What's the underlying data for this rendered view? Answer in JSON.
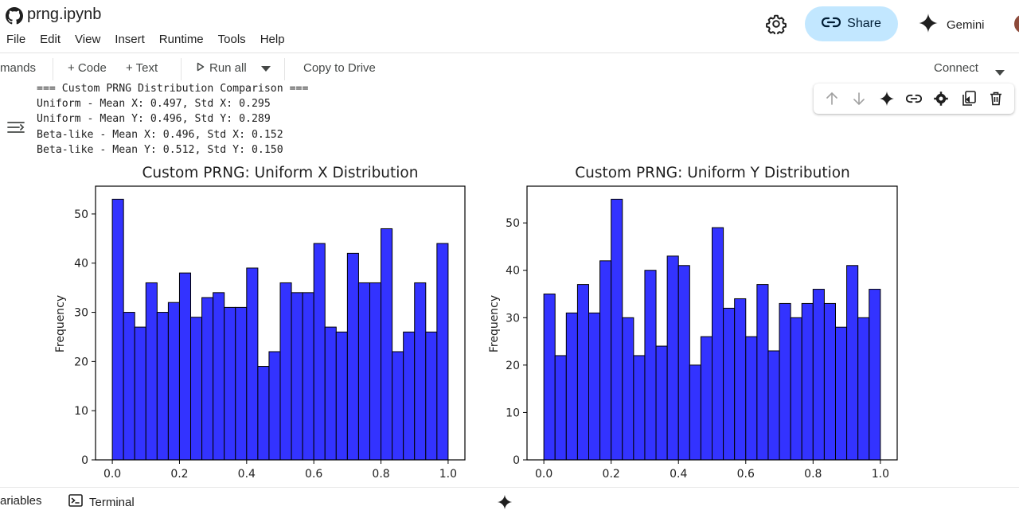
{
  "header": {
    "title": "prng.ipynb",
    "menu": [
      "File",
      "Edit",
      "View",
      "Insert",
      "Runtime",
      "Tools",
      "Help"
    ],
    "share_label": "Share",
    "gemini_label": "Gemini"
  },
  "toolbar": {
    "commands_label": "mands",
    "code_label": "+ Code",
    "text_label": "+ Text",
    "run_all_label": "Run all",
    "copy_label": "Copy to Drive",
    "connect_label": "Connect"
  },
  "output": {
    "lines": [
      "=== Custom PRNG Distribution Comparison ===",
      "Uniform - Mean X: 0.497, Std X: 0.295",
      "Uniform - Mean Y: 0.496, Std Y: 0.289",
      "Beta-like - Mean X: 0.496, Std X: 0.152",
      "Beta-like - Mean Y: 0.512, Std Y: 0.150"
    ]
  },
  "chart_data": [
    {
      "type": "bar",
      "title": "Custom PRNG: Uniform X Distribution",
      "xlabel": "",
      "ylabel": "Frequency",
      "bins": 30,
      "xlim": [
        -0.05,
        1.05
      ],
      "ylim": [
        0,
        55.65
      ],
      "xticks": [
        "0.0",
        "0.2",
        "0.4",
        "0.6",
        "0.8",
        "1.0"
      ],
      "yticks": [
        "0",
        "10",
        "20",
        "30",
        "40",
        "50"
      ],
      "values": [
        53,
        30,
        27,
        36,
        30,
        32,
        38,
        29,
        33,
        34,
        31,
        31,
        39,
        19,
        22,
        36,
        34,
        34,
        44,
        27,
        26,
        42,
        36,
        36,
        47,
        22,
        26,
        36,
        26,
        44
      ],
      "bar_color": "#3333ff",
      "edge_color": "#000000"
    },
    {
      "type": "bar",
      "title": "Custom PRNG: Uniform Y Distribution",
      "xlabel": "",
      "ylabel": "Frequency",
      "bins": 30,
      "xlim": [
        -0.05,
        1.05
      ],
      "ylim": [
        0,
        57.75
      ],
      "xticks": [
        "0.0",
        "0.2",
        "0.4",
        "0.6",
        "0.8",
        "1.0"
      ],
      "yticks": [
        "0",
        "10",
        "20",
        "30",
        "40",
        "50"
      ],
      "values": [
        35,
        22,
        31,
        37,
        31,
        42,
        55,
        30,
        22,
        40,
        24,
        43,
        41,
        20,
        26,
        49,
        32,
        34,
        26,
        37,
        23,
        33,
        30,
        33,
        36,
        33,
        28,
        41,
        30,
        36
      ],
      "bar_color": "#3333ff",
      "edge_color": "#000000"
    }
  ],
  "statusbar": {
    "variables_label": "ariables",
    "terminal_label": "Terminal"
  }
}
